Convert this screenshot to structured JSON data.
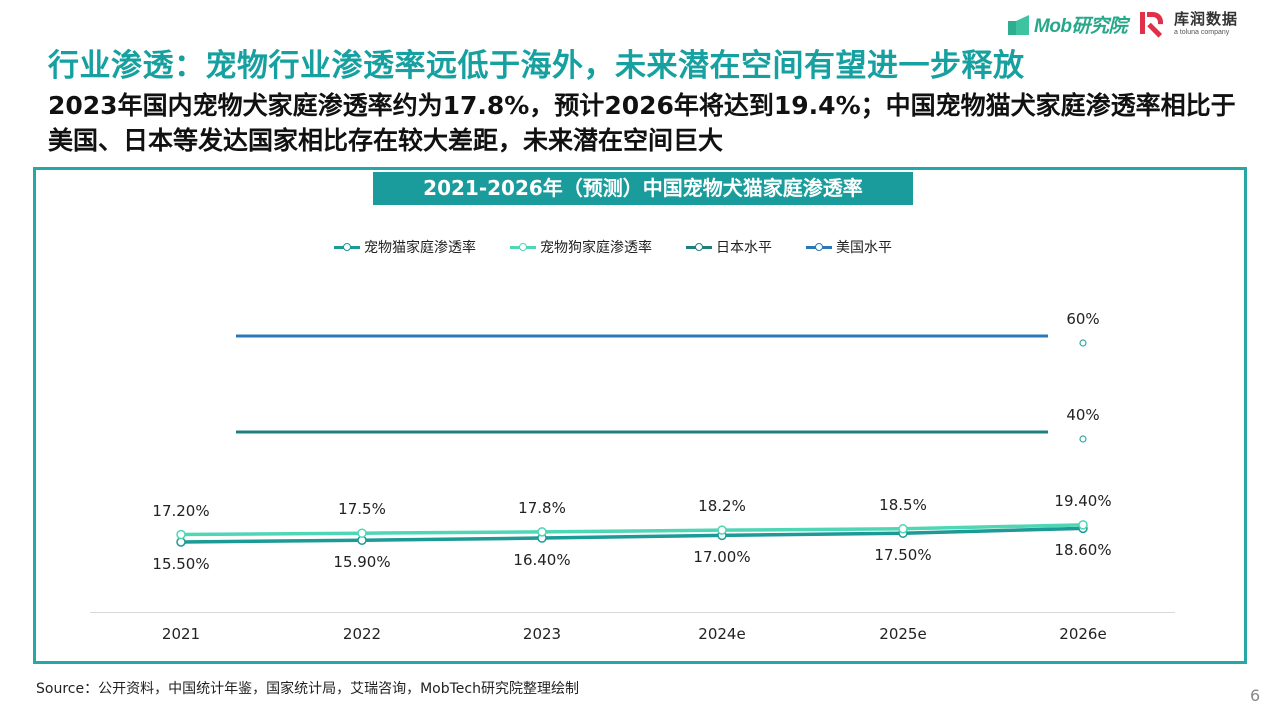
{
  "header": {
    "title": "行业渗透：宠物行业渗透率远低于海外，未来潜在空间有望进一步释放",
    "subtitle": "2023年国内宠物犬家庭渗透率约为17.8%，预计2026年将达到19.4%；中国宠物猫犬家庭渗透率相比于美国、日本等发达国家相比存在较大差距，未来潜在空间巨大",
    "logos": {
      "mob": "Mob研究院",
      "kr_name": "库润数据",
      "kr_sub": "a toluna company"
    }
  },
  "colors": {
    "title": "#16a0a0",
    "frame": "#26a8a8",
    "chart_title_bg": "#1a9c9c",
    "cat": "#1b9a96",
    "dog": "#4fd6b4",
    "japan": "#1f7f80",
    "usa": "#2a78b8"
  },
  "chart_data": {
    "type": "line",
    "title": "2021-2026年（预测）中国宠物犬猫家庭渗透率",
    "categories": [
      "2021",
      "2022",
      "2023",
      "2024e",
      "2025e",
      "2026e"
    ],
    "series": [
      {
        "name": "宠物猫家庭渗透率",
        "key": "cat",
        "values": [
          15.5,
          15.9,
          16.4,
          17.0,
          17.5,
          18.6
        ],
        "labels": [
          "15.50%",
          "15.90%",
          "16.40%",
          "17.00%",
          "17.50%",
          "18.60%"
        ]
      },
      {
        "name": "宠物狗家庭渗透率",
        "key": "dog",
        "values": [
          17.2,
          17.5,
          17.8,
          18.2,
          18.5,
          19.4
        ],
        "labels": [
          "17.20%",
          "17.5%",
          "17.8%",
          "18.2%",
          "18.5%",
          "19.40%"
        ]
      },
      {
        "name": "日本水平",
        "key": "japan",
        "values": [
          40,
          40,
          40,
          40,
          40,
          40
        ],
        "labels": [
          "",
          "",
          "",
          "",
          "",
          "40%"
        ]
      },
      {
        "name": "美国水平",
        "key": "usa",
        "values": [
          60,
          60,
          60,
          60,
          60,
          60
        ],
        "labels": [
          "",
          "",
          "",
          "",
          "",
          "60%"
        ]
      }
    ],
    "xlabel": "",
    "ylabel": "",
    "grid": false,
    "legend_position": "top"
  },
  "footer": {
    "source": "Source：公开资料，中国统计年鉴，国家统计局，艾瑞咨询，MobTech研究院整理绘制",
    "page_number": "6"
  }
}
